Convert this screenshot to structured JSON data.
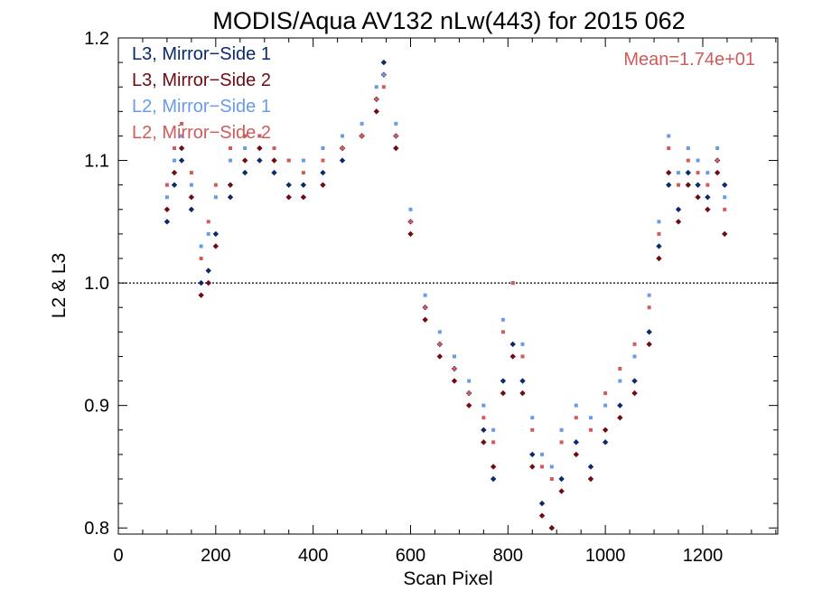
{
  "chart_data": {
    "type": "scatter",
    "title": "MODIS/Aqua AV132 nLw(443) for 2015 062",
    "xlabel": "Scan Pixel",
    "ylabel": "L2 & L3",
    "xlim": [
      0,
      1354
    ],
    "ylim": [
      0.795,
      1.2
    ],
    "xticks": [
      0,
      200,
      400,
      600,
      800,
      1000,
      1200
    ],
    "xtick_labels": [
      "0",
      "200",
      "400",
      "600",
      "800",
      "1000",
      "1200"
    ],
    "yticks": [
      0.8,
      0.9,
      1.0,
      1.1,
      1.2
    ],
    "ytick_labels": [
      "0.8",
      "0.9",
      "1.0",
      "1.1",
      "1.2"
    ],
    "reference_line": 1.0,
    "annotation": "Mean=1.74e+01",
    "legend_position": "top-left",
    "grid": false,
    "series": [
      {
        "name": "L3, Mirror−Side 1",
        "color": "#0b2a6b",
        "marker": "diamond",
        "points": [
          [
            100,
            1.05
          ],
          [
            115,
            1.08
          ],
          [
            130,
            1.1
          ],
          [
            150,
            1.06
          ],
          [
            170,
            1.0
          ],
          [
            185,
            1.01
          ],
          [
            200,
            1.04
          ],
          [
            230,
            1.07
          ],
          [
            260,
            1.09
          ],
          [
            290,
            1.1
          ],
          [
            320,
            1.09
          ],
          [
            350,
            1.08
          ],
          [
            380,
            1.08
          ],
          [
            420,
            1.09
          ],
          [
            460,
            1.1
          ],
          [
            500,
            1.12
          ],
          [
            530,
            1.15
          ],
          [
            545,
            1.18
          ],
          [
            570,
            1.12
          ],
          [
            600,
            1.05
          ],
          [
            630,
            0.98
          ],
          [
            660,
            0.95
          ],
          [
            690,
            0.93
          ],
          [
            720,
            0.91
          ],
          [
            750,
            0.88
          ],
          [
            770,
            0.84
          ],
          [
            790,
            0.92
          ],
          [
            810,
            0.95
          ],
          [
            830,
            0.92
          ],
          [
            850,
            0.86
          ],
          [
            870,
            0.82
          ],
          [
            890,
            0.8
          ],
          [
            910,
            0.84
          ],
          [
            940,
            0.87
          ],
          [
            970,
            0.85
          ],
          [
            1000,
            0.87
          ],
          [
            1030,
            0.9
          ],
          [
            1060,
            0.92
          ],
          [
            1090,
            0.96
          ],
          [
            1110,
            1.03
          ],
          [
            1130,
            1.08
          ],
          [
            1150,
            1.06
          ],
          [
            1170,
            1.09
          ],
          [
            1190,
            1.08
          ],
          [
            1210,
            1.07
          ],
          [
            1230,
            1.1
          ],
          [
            1245,
            1.08
          ]
        ]
      },
      {
        "name": "L3, Mirror−Side 2",
        "color": "#6e0b14",
        "marker": "diamond",
        "points": [
          [
            100,
            1.06
          ],
          [
            115,
            1.09
          ],
          [
            130,
            1.11
          ],
          [
            150,
            1.07
          ],
          [
            170,
            0.99
          ],
          [
            185,
            1.0
          ],
          [
            200,
            1.03
          ],
          [
            230,
            1.08
          ],
          [
            260,
            1.1
          ],
          [
            290,
            1.11
          ],
          [
            320,
            1.1
          ],
          [
            350,
            1.07
          ],
          [
            380,
            1.07
          ],
          [
            420,
            1.08
          ],
          [
            460,
            1.11
          ],
          [
            500,
            1.12
          ],
          [
            530,
            1.14
          ],
          [
            545,
            1.17
          ],
          [
            570,
            1.11
          ],
          [
            600,
            1.04
          ],
          [
            630,
            0.97
          ],
          [
            660,
            0.94
          ],
          [
            690,
            0.92
          ],
          [
            720,
            0.9
          ],
          [
            750,
            0.87
          ],
          [
            770,
            0.85
          ],
          [
            790,
            0.91
          ],
          [
            810,
            0.94
          ],
          [
            830,
            0.91
          ],
          [
            850,
            0.85
          ],
          [
            870,
            0.81
          ],
          [
            890,
            0.8
          ],
          [
            910,
            0.83
          ],
          [
            940,
            0.86
          ],
          [
            970,
            0.84
          ],
          [
            1000,
            0.88
          ],
          [
            1030,
            0.89
          ],
          [
            1060,
            0.91
          ],
          [
            1090,
            0.95
          ],
          [
            1110,
            1.02
          ],
          [
            1130,
            1.09
          ],
          [
            1150,
            1.05
          ],
          [
            1170,
            1.08
          ],
          [
            1190,
            1.07
          ],
          [
            1210,
            1.06
          ],
          [
            1230,
            1.09
          ],
          [
            1245,
            1.04
          ]
        ]
      },
      {
        "name": "L2, Mirror−Side 1",
        "color": "#6a9be8",
        "marker": "square",
        "points": [
          [
            100,
            1.07
          ],
          [
            115,
            1.1
          ],
          [
            130,
            1.12
          ],
          [
            150,
            1.08
          ],
          [
            170,
            1.03
          ],
          [
            185,
            1.04
          ],
          [
            200,
            1.07
          ],
          [
            230,
            1.1
          ],
          [
            260,
            1.11
          ],
          [
            290,
            1.12
          ],
          [
            320,
            1.11
          ],
          [
            350,
            1.1
          ],
          [
            380,
            1.1
          ],
          [
            420,
            1.11
          ],
          [
            460,
            1.12
          ],
          [
            500,
            1.13
          ],
          [
            530,
            1.16
          ],
          [
            545,
            1.17
          ],
          [
            570,
            1.13
          ],
          [
            600,
            1.06
          ],
          [
            630,
            0.99
          ],
          [
            660,
            0.96
          ],
          [
            690,
            0.94
          ],
          [
            720,
            0.92
          ],
          [
            750,
            0.9
          ],
          [
            770,
            0.88
          ],
          [
            790,
            0.97
          ],
          [
            810,
            1.0
          ],
          [
            830,
            0.95
          ],
          [
            850,
            0.89
          ],
          [
            870,
            0.86
          ],
          [
            890,
            0.85
          ],
          [
            910,
            0.88
          ],
          [
            940,
            0.9
          ],
          [
            970,
            0.89
          ],
          [
            1000,
            0.9
          ],
          [
            1030,
            0.92
          ],
          [
            1060,
            0.94
          ],
          [
            1090,
            0.99
          ],
          [
            1110,
            1.05
          ],
          [
            1130,
            1.12
          ],
          [
            1150,
            1.09
          ],
          [
            1170,
            1.11
          ],
          [
            1190,
            1.1
          ],
          [
            1210,
            1.09
          ],
          [
            1230,
            1.11
          ],
          [
            1245,
            1.07
          ]
        ]
      },
      {
        "name": "L2, Mirror−Side 2",
        "color": "#cf5b5b",
        "marker": "square",
        "points": [
          [
            100,
            1.08
          ],
          [
            115,
            1.11
          ],
          [
            130,
            1.13
          ],
          [
            150,
            1.09
          ],
          [
            170,
            1.02
          ],
          [
            185,
            1.05
          ],
          [
            200,
            1.08
          ],
          [
            230,
            1.11
          ],
          [
            260,
            1.12
          ],
          [
            290,
            1.12
          ],
          [
            320,
            1.11
          ],
          [
            350,
            1.1
          ],
          [
            380,
            1.09
          ],
          [
            420,
            1.1
          ],
          [
            460,
            1.11
          ],
          [
            500,
            1.12
          ],
          [
            530,
            1.15
          ],
          [
            545,
            1.16
          ],
          [
            570,
            1.12
          ],
          [
            600,
            1.05
          ],
          [
            630,
            0.98
          ],
          [
            660,
            0.95
          ],
          [
            690,
            0.93
          ],
          [
            720,
            0.91
          ],
          [
            750,
            0.89
          ],
          [
            770,
            0.87
          ],
          [
            790,
            0.96
          ],
          [
            810,
            1.0
          ],
          [
            830,
            0.94
          ],
          [
            850,
            0.88
          ],
          [
            870,
            0.85
          ],
          [
            890,
            0.84
          ],
          [
            910,
            0.87
          ],
          [
            940,
            0.89
          ],
          [
            970,
            0.88
          ],
          [
            1000,
            0.91
          ],
          [
            1030,
            0.93
          ],
          [
            1060,
            0.95
          ],
          [
            1090,
            0.98
          ],
          [
            1110,
            1.04
          ],
          [
            1130,
            1.11
          ],
          [
            1150,
            1.08
          ],
          [
            1170,
            1.1
          ],
          [
            1190,
            1.09
          ],
          [
            1210,
            1.08
          ],
          [
            1230,
            1.1
          ],
          [
            1245,
            1.06
          ]
        ]
      }
    ]
  }
}
